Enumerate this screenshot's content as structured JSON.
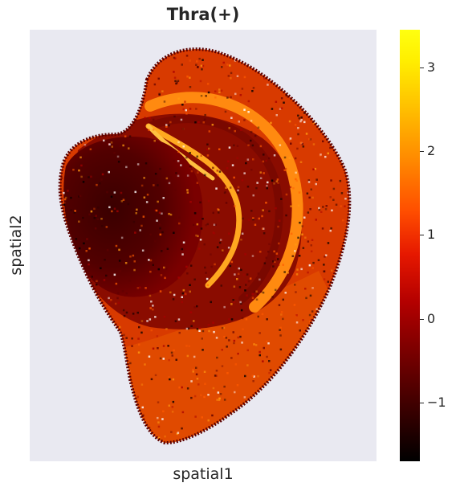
{
  "chart_data": {
    "type": "heatmap",
    "title": "Thra(+)",
    "xlabel": "spatial1",
    "ylabel": "spatial2",
    "grid": false,
    "colormap": "hot",
    "background_color": "#e9e9f1",
    "colorbar": {
      "min": -1.7,
      "max": 3.45,
      "ticks": [
        3,
        2,
        1,
        0,
        -1
      ],
      "tick_labels": [
        "3",
        "2",
        "1",
        "0",
        "−1"
      ]
    },
    "regions": [
      {
        "region": "outer-cortex-band",
        "typical_value": 1.2
      },
      {
        "region": "inner-arc-bands",
        "typical_value": 1.9
      },
      {
        "region": "central-core",
        "typical_value": -0.6
      },
      {
        "region": "lower-lobe",
        "typical_value": 1.1
      }
    ]
  }
}
